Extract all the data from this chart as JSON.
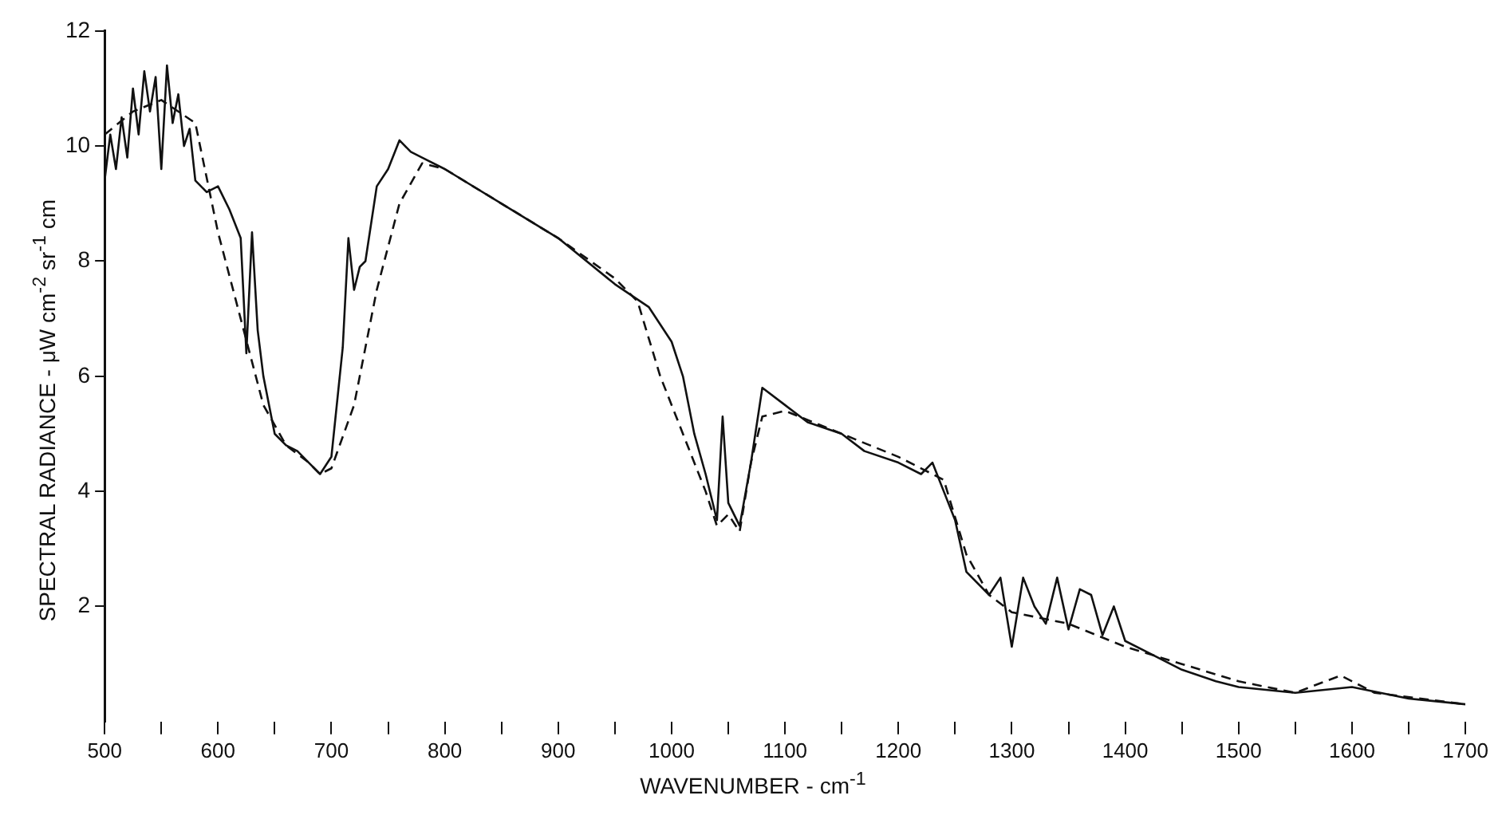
{
  "chart_data": {
    "type": "line",
    "xlabel": "WAVENUMBER - cm$^{-1}$",
    "ylabel": "SPECTRAL RADIANCE - μW cm$^{-2}$ sr$^{-1}$ cm",
    "xlim": [
      500,
      1700
    ],
    "xticks": [
      500,
      {
        "value": 550,
        "label": null
      },
      600,
      {
        "value": 650,
        "label": null
      },
      700,
      {
        "value": 750,
        "label": null
      },
      800,
      {
        "value": 850,
        "label": null
      },
      900,
      {
        "value": 950,
        "label": null
      },
      1000,
      {
        "value": 1050,
        "label": null
      },
      1100,
      {
        "value": 1150,
        "label": null
      },
      1200,
      {
        "value": 1250,
        "label": null
      },
      1300,
      {
        "value": 1350,
        "label": null
      },
      1400,
      {
        "value": 1450,
        "label": null
      },
      1500,
      {
        "value": 1550,
        "label": null
      },
      1600,
      {
        "value": 1650,
        "label": null
      },
      1700
    ],
    "ylim": [
      0,
      12
    ],
    "yticks": [
      2,
      4,
      6,
      8,
      10,
      12
    ],
    "grid": false,
    "legend": false,
    "marker": "none",
    "series": [
      {
        "color": "#111111",
        "line_style": "solid",
        "x": [
          500,
          505,
          510,
          515,
          520,
          525,
          530,
          535,
          540,
          545,
          550,
          555,
          560,
          565,
          570,
          575,
          580,
          590,
          600,
          610,
          620,
          625,
          630,
          635,
          640,
          650,
          660,
          670,
          680,
          690,
          700,
          710,
          715,
          720,
          725,
          730,
          740,
          750,
          760,
          770,
          780,
          800,
          850,
          900,
          950,
          980,
          1000,
          1010,
          1020,
          1030,
          1040,
          1045,
          1050,
          1060,
          1070,
          1080,
          1100,
          1120,
          1150,
          1170,
          1200,
          1220,
          1230,
          1240,
          1250,
          1260,
          1280,
          1290,
          1300,
          1310,
          1320,
          1330,
          1340,
          1350,
          1360,
          1370,
          1380,
          1390,
          1400,
          1420,
          1450,
          1480,
          1500,
          1550,
          1600,
          1650,
          1700
        ],
        "values": [
          9.4,
          10.2,
          9.6,
          10.5,
          9.8,
          11.0,
          10.2,
          11.3,
          10.6,
          11.2,
          9.6,
          11.4,
          10.4,
          10.9,
          10.0,
          10.3,
          9.4,
          9.2,
          9.3,
          8.9,
          8.4,
          6.4,
          8.5,
          6.8,
          6.0,
          5.0,
          4.8,
          4.7,
          4.5,
          4.3,
          4.6,
          6.5,
          8.4,
          7.5,
          7.9,
          8.0,
          9.3,
          9.6,
          10.1,
          9.9,
          9.8,
          9.6,
          9.0,
          8.4,
          7.6,
          7.2,
          6.6,
          6.0,
          5.0,
          4.3,
          3.5,
          5.3,
          3.8,
          3.4,
          4.5,
          5.8,
          5.5,
          5.2,
          5.0,
          4.7,
          4.5,
          4.3,
          4.5,
          4.0,
          3.5,
          2.6,
          2.2,
          2.5,
          1.3,
          2.5,
          2.0,
          1.7,
          2.5,
          1.6,
          2.3,
          2.2,
          1.5,
          2.0,
          1.4,
          1.2,
          0.9,
          0.7,
          0.6,
          0.5,
          0.6,
          0.4,
          0.3
        ]
      },
      {
        "color": "#111111",
        "line_style": "dashed",
        "x": [
          500,
          525,
          550,
          580,
          600,
          620,
          640,
          660,
          680,
          690,
          700,
          720,
          740,
          760,
          780,
          800,
          850,
          900,
          950,
          970,
          990,
          1010,
          1030,
          1040,
          1050,
          1060,
          1070,
          1080,
          1100,
          1150,
          1200,
          1240,
          1260,
          1280,
          1300,
          1350,
          1400,
          1450,
          1500,
          1550,
          1590,
          1620,
          1700
        ],
        "values": [
          10.2,
          10.6,
          10.8,
          10.4,
          8.5,
          7.0,
          5.5,
          4.8,
          4.5,
          4.3,
          4.4,
          5.5,
          7.5,
          9.0,
          9.7,
          9.6,
          9.0,
          8.4,
          7.7,
          7.3,
          6.0,
          5.0,
          4.0,
          3.4,
          3.6,
          3.3,
          4.5,
          5.3,
          5.4,
          5.0,
          4.6,
          4.2,
          2.9,
          2.2,
          1.9,
          1.7,
          1.3,
          1.0,
          0.7,
          0.5,
          0.8,
          0.5,
          0.3
        ]
      }
    ]
  }
}
